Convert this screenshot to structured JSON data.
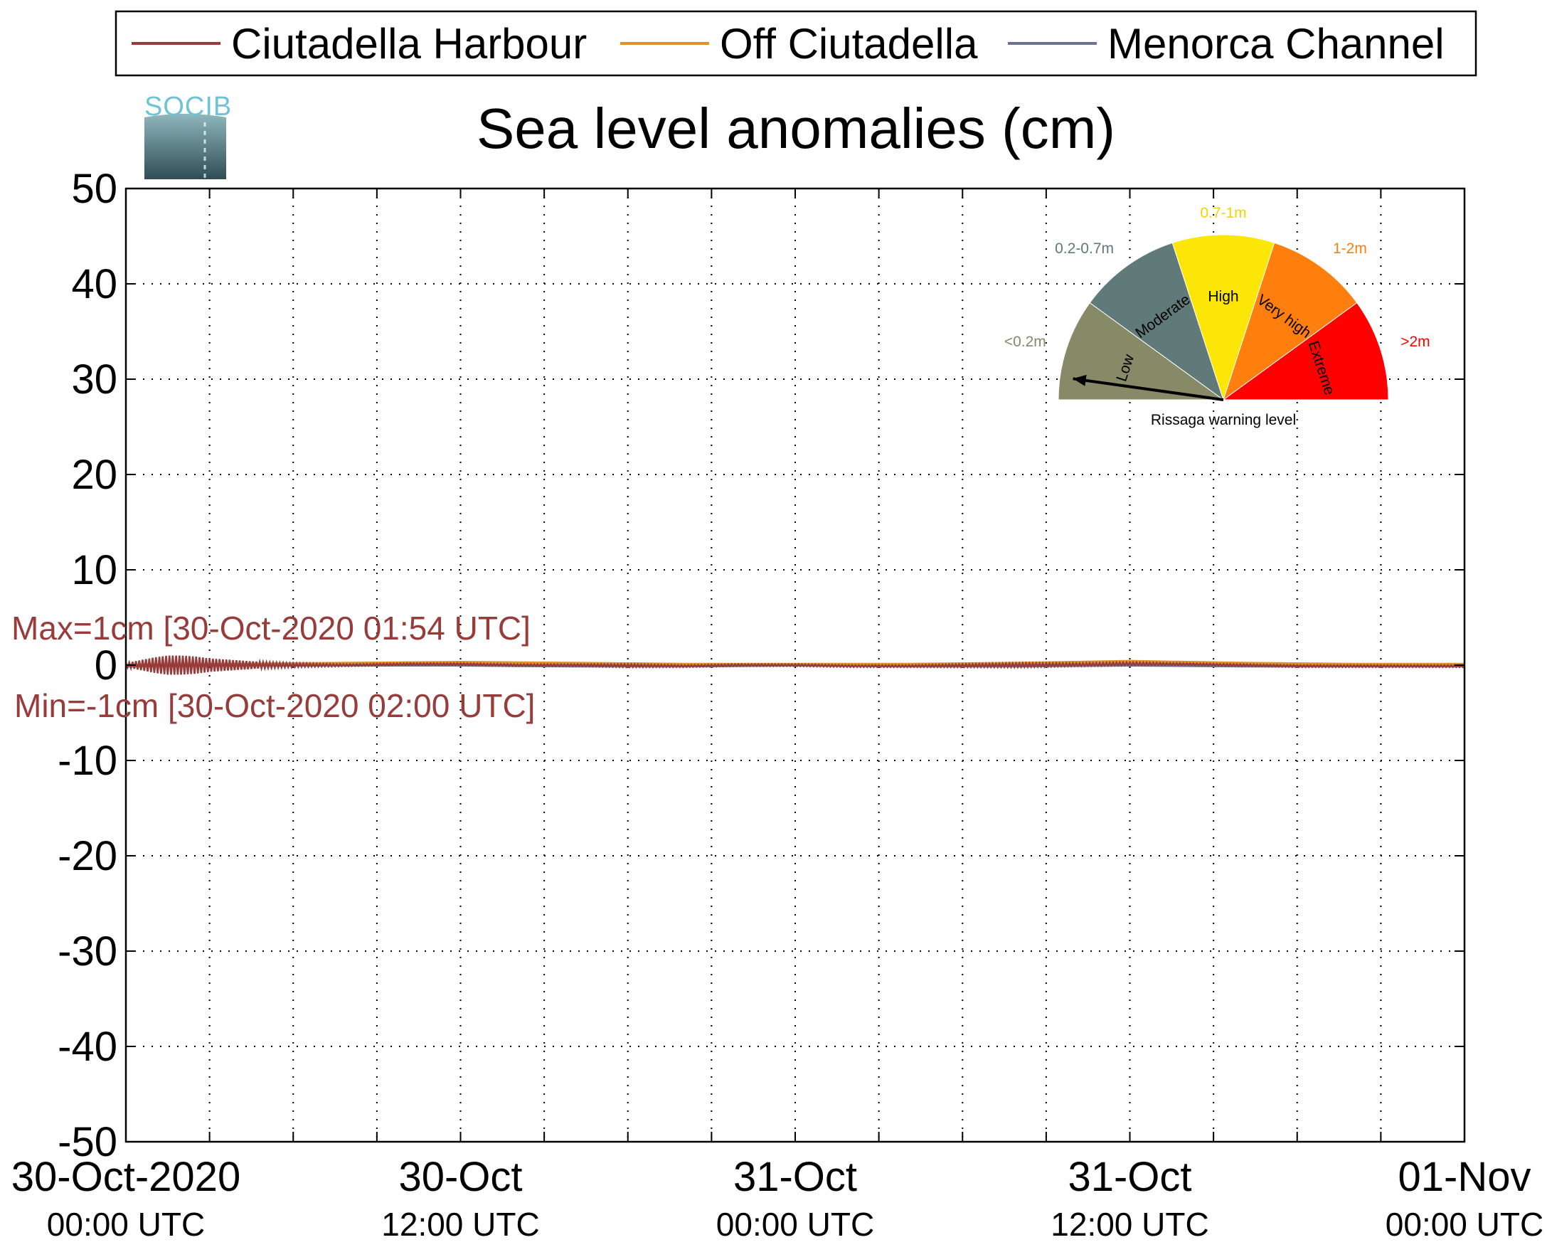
{
  "chart_data": {
    "type": "line",
    "title": "Sea level anomalies (cm)",
    "xlabel": "",
    "ylabel": "",
    "ylim": [
      -50,
      50
    ],
    "yticks": [
      50,
      40,
      30,
      20,
      10,
      0,
      -10,
      -20,
      -30,
      -40,
      -50
    ],
    "x_range_hours": [
      0,
      48
    ],
    "xtick_labels": [
      {
        "hours": 0,
        "line1": "30-Oct-2020",
        "line2": "00:00 UTC"
      },
      {
        "hours": 12,
        "line1": "30-Oct",
        "line2": "12:00 UTC"
      },
      {
        "hours": 24,
        "line1": "31-Oct",
        "line2": "00:00 UTC"
      },
      {
        "hours": 36,
        "line1": "31-Oct",
        "line2": "12:00 UTC"
      },
      {
        "hours": 48,
        "line1": "01-Nov",
        "line2": "00:00 UTC"
      }
    ],
    "x_minor_grid_hours": [
      3,
      6,
      9,
      12,
      15,
      18,
      21,
      24,
      27,
      30,
      33,
      36,
      39,
      42,
      45
    ],
    "grid": true,
    "legend_position": "top",
    "series": [
      {
        "name": "Ciutadella Harbour",
        "color": "#973b3b",
        "x": [
          0,
          0.5,
          1,
          1.5,
          2,
          2.5,
          3,
          3.5,
          4,
          4.5,
          5,
          6,
          8,
          10,
          12,
          14,
          16,
          18,
          20,
          22,
          24,
          26,
          28,
          30,
          32,
          34,
          36,
          38,
          40,
          42,
          44,
          46,
          48
        ],
        "y": [
          0.2,
          0.5,
          0.8,
          1.0,
          1.0,
          0.9,
          0.7,
          0.6,
          0.5,
          0.4,
          0.3,
          0.2,
          0.1,
          0.2,
          0.2,
          0.1,
          0.1,
          0.1,
          0.0,
          0.1,
          0.1,
          0.0,
          0.0,
          0.1,
          0.2,
          0.2,
          0.3,
          0.2,
          0.1,
          0.0,
          0.0,
          0.0,
          0.0
        ],
        "y_min": [
          -0.2,
          -0.5,
          -0.8,
          -1.0,
          -1.0,
          -0.9,
          -0.7,
          -0.6,
          -0.5,
          -0.4,
          -0.3,
          -0.2,
          -0.1,
          0.0,
          0.0,
          -0.1,
          -0.1,
          -0.2,
          -0.2,
          -0.1,
          -0.1,
          -0.2,
          -0.2,
          -0.2,
          -0.2,
          -0.1,
          0.0,
          0.0,
          -0.1,
          -0.2,
          -0.2,
          -0.2,
          -0.2
        ]
      },
      {
        "name": "Off Ciutadella",
        "color": "#e0912a",
        "x": [
          0,
          4,
          8,
          12,
          16,
          20,
          24,
          28,
          32,
          36,
          40,
          44,
          48
        ],
        "y": [
          0.0,
          0.1,
          0.2,
          0.3,
          0.2,
          0.1,
          0.1,
          0.1,
          0.2,
          0.4,
          0.2,
          0.1,
          0.1
        ]
      },
      {
        "name": "Menorca Channel",
        "color": "#6a7390",
        "x": [
          0,
          4,
          8,
          12,
          16,
          20,
          24,
          28,
          32,
          36,
          40,
          44,
          48
        ],
        "y": [
          -0.1,
          0.0,
          0.0,
          0.0,
          -0.1,
          -0.1,
          0.0,
          -0.1,
          -0.1,
          0.0,
          -0.1,
          -0.1,
          -0.1
        ]
      }
    ],
    "annotations": {
      "max": "Max=1cm [30-Oct-2020 01:54 UTC]",
      "min": "Min=-1cm [30-Oct-2020 02:00 UTC]"
    }
  },
  "logo": {
    "text": "SOCIB"
  },
  "gauge": {
    "title": "Rissaga warning level",
    "needle_level": "Low",
    "segments": [
      {
        "name": "Low",
        "range": "<0.2m",
        "color": "#868a66",
        "range_color": "#868a66"
      },
      {
        "name": "Moderate",
        "range": "0.2-0.7m",
        "color": "#5f7a78",
        "range_color": "#5f7a78"
      },
      {
        "name": "High",
        "range": "0.7-1m",
        "color": "#fbe607",
        "range_color": "#f2d600"
      },
      {
        "name": "Very high",
        "range": "1-2m",
        "color": "#ff7f0e",
        "range_color": "#ff7f0e"
      },
      {
        "name": "Extreme",
        "range": ">2m",
        "color": "#ff0000",
        "range_color": "#ff0000"
      }
    ]
  }
}
